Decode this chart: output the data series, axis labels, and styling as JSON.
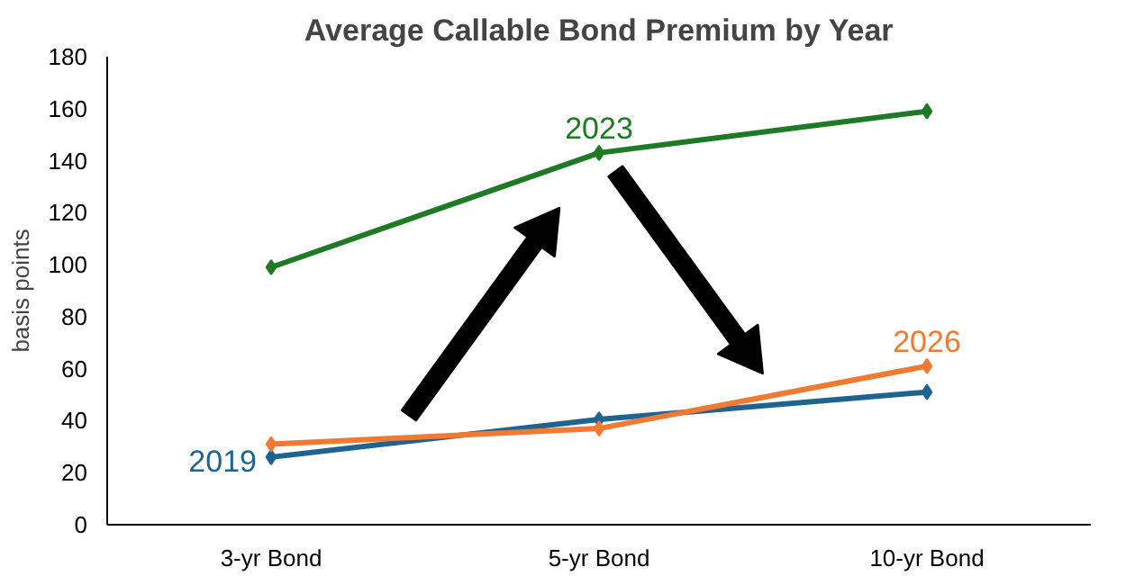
{
  "chart_data": {
    "type": "line",
    "title": "Average Callable Bond Premium by Year",
    "ylabel": "basis points",
    "categories": [
      "3-yr Bond",
      "5-yr Bond",
      "10-yr Bond"
    ],
    "series": [
      {
        "name": "2019",
        "color": "#1f6391",
        "values": [
          26,
          40.5,
          51
        ]
      },
      {
        "name": "2023",
        "color": "#1e7a24",
        "values": [
          99,
          143,
          159
        ]
      },
      {
        "name": "2026",
        "color": "#f07a32",
        "values": [
          31,
          37,
          61
        ]
      }
    ],
    "ylim": [
      0,
      180
    ],
    "yticks": [
      0,
      20,
      40,
      60,
      80,
      100,
      120,
      140,
      160,
      180
    ],
    "marker": "diamond",
    "grid": false
  }
}
